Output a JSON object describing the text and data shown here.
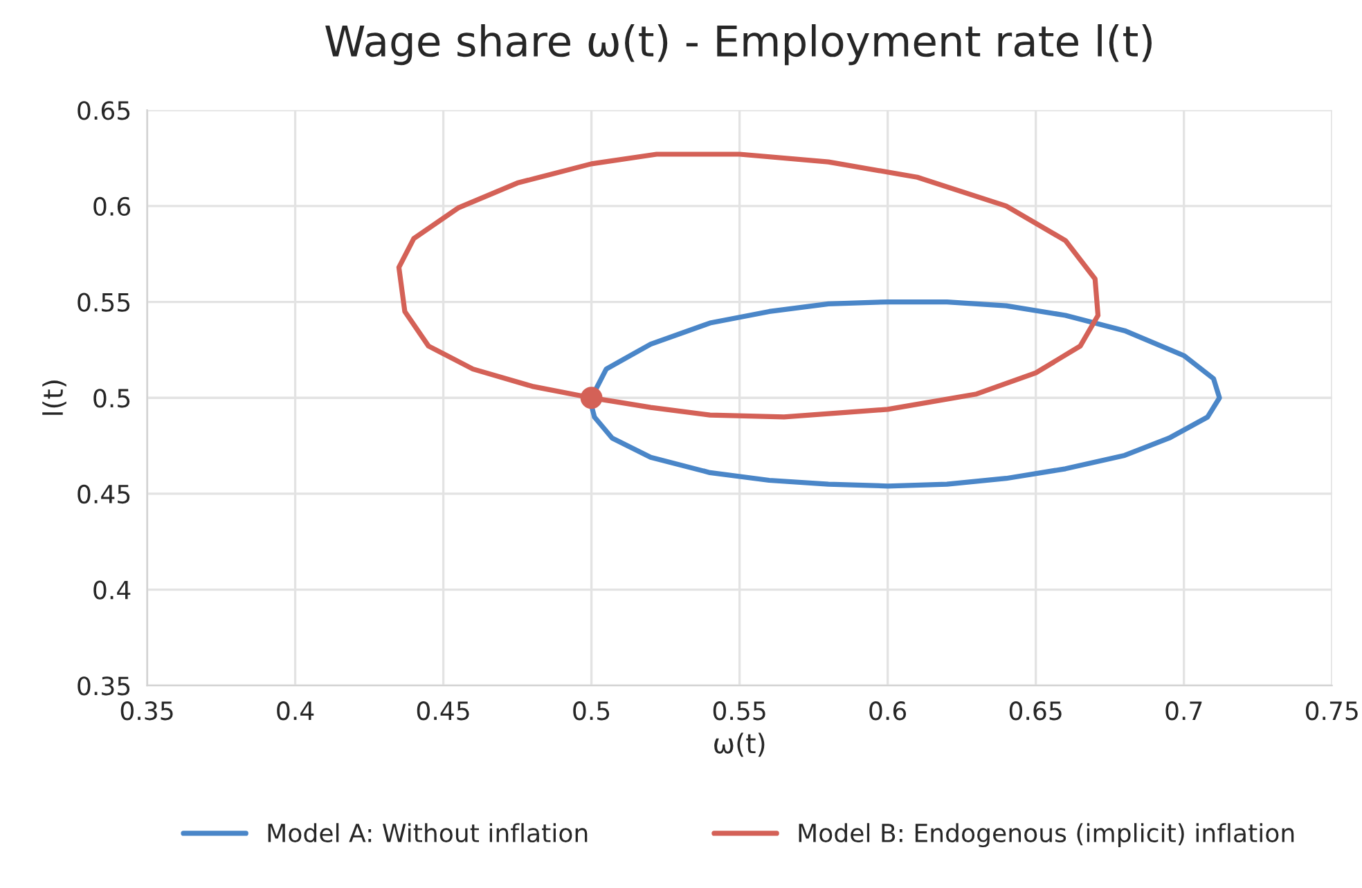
{
  "chart_data": {
    "type": "line",
    "title": "Wage share ω(t) - Employment rate l(t)",
    "xlabel": "ω(t)",
    "ylabel": "l(t)",
    "xlim": [
      0.35,
      0.75
    ],
    "xticks": [
      0.35,
      0.4,
      0.45,
      0.5,
      0.55,
      0.6,
      0.65,
      0.7,
      0.75
    ],
    "ylim": [
      0.35,
      0.65
    ],
    "yticks": [
      0.35,
      0.4,
      0.45,
      0.5,
      0.55,
      0.6,
      0.65
    ],
    "grid": true,
    "legend": "bottom",
    "marker": "none",
    "series": [
      {
        "name": "Model A: Without inflation",
        "color": "#4a86c8",
        "x": [
          0.5,
          0.505,
          0.52,
          0.54,
          0.56,
          0.58,
          0.6,
          0.62,
          0.64,
          0.66,
          0.68,
          0.7,
          0.71,
          0.712,
          0.708,
          0.695,
          0.68,
          0.66,
          0.64,
          0.62,
          0.6,
          0.58,
          0.56,
          0.54,
          0.52,
          0.507,
          0.501,
          0.5
        ],
        "values": [
          0.5,
          0.515,
          0.528,
          0.539,
          0.545,
          0.549,
          0.55,
          0.55,
          0.548,
          0.543,
          0.535,
          0.522,
          0.51,
          0.5,
          0.49,
          0.479,
          0.47,
          0.463,
          0.458,
          0.455,
          0.454,
          0.455,
          0.457,
          0.461,
          0.469,
          0.479,
          0.49,
          0.496
        ]
      },
      {
        "name": "Model B: Endogenous (implicit) inflation",
        "color": "#d46157",
        "x": [
          0.5,
          0.48,
          0.46,
          0.445,
          0.437,
          0.435,
          0.44,
          0.455,
          0.475,
          0.5,
          0.522,
          0.55,
          0.58,
          0.61,
          0.64,
          0.66,
          0.67,
          0.671,
          0.665,
          0.65,
          0.63,
          0.6,
          0.565,
          0.54,
          0.52,
          0.51,
          0.502
        ],
        "values": [
          0.5,
          0.506,
          0.515,
          0.527,
          0.545,
          0.568,
          0.583,
          0.599,
          0.612,
          0.622,
          0.627,
          0.627,
          0.623,
          0.615,
          0.6,
          0.582,
          0.562,
          0.543,
          0.527,
          0.513,
          0.502,
          0.494,
          0.49,
          0.491,
          0.495,
          0.4975,
          0.4995
        ]
      },
      {
        "type": "scatter",
        "color": "#d46157",
        "marker": "circle",
        "x": [
          0.5
        ],
        "values": [
          0.5
        ]
      }
    ]
  }
}
